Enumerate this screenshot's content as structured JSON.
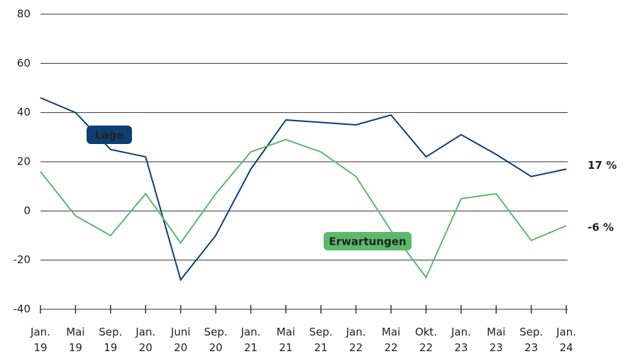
{
  "chart_data": {
    "type": "line",
    "categories": [
      "Jan.\n19",
      "Mai\n19",
      "Sep.\n19",
      "Jan.\n20",
      "Juni\n20",
      "Sep.\n20",
      "Jan.\n21",
      "Mai\n21",
      "Sep.\n21",
      "Jan.\n22",
      "Mai\n22",
      "Okt.\n22",
      "Jan.\n23",
      "Mai\n23",
      "Sep.\n23",
      "Jan.\n24"
    ],
    "series": [
      {
        "name": "Lage",
        "color": "#0d3f72",
        "values": [
          46,
          40,
          25,
          22,
          -28,
          -10,
          17,
          37,
          36,
          35,
          39,
          22,
          31,
          23,
          14,
          17
        ],
        "end_label": "17 %"
      },
      {
        "name": "Erwartungen",
        "color": "#5cb86a",
        "values": [
          16,
          -2,
          -10,
          7,
          -13,
          7,
          24,
          29,
          24,
          14,
          -8,
          -27,
          5,
          7,
          -12,
          -6
        ],
        "end_label": "-6 %"
      }
    ],
    "ylim": [
      -40,
      80
    ],
    "yticks": [
      -40,
      -20,
      0,
      20,
      40,
      60,
      80
    ],
    "grid": true
  }
}
